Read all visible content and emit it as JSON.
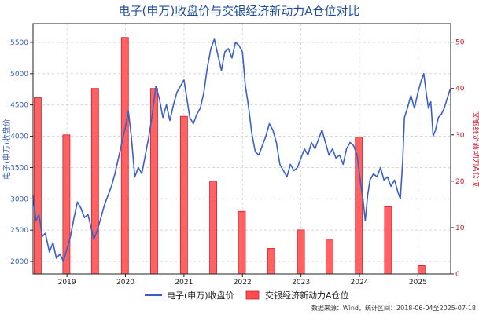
{
  "chart_data": {
    "type": "bar+line",
    "title": "电子(申万)收盘价与交银经济新动力A仓位对比",
    "ylabel_left": "电子(申万)收盘价",
    "ylabel_right": "交银经济新动力A仓位",
    "ylim_left": [
      1800,
      5800
    ],
    "ylim_right": [
      0,
      54
    ],
    "yticks_left": [
      2000,
      2500,
      3000,
      3500,
      4000,
      4500,
      5000,
      5500
    ],
    "yticks_right": [
      0,
      10,
      20,
      30,
      40,
      50
    ],
    "xlim": [
      2018.42,
      2025.56
    ],
    "xticks": [
      {
        "label": "2019",
        "value": 2019.0
      },
      {
        "label": "2020",
        "value": 2020.0
      },
      {
        "label": "2021",
        "value": 2021.0
      },
      {
        "label": "2022",
        "value": 2022.0
      },
      {
        "label": "2023",
        "value": 2023.0
      },
      {
        "label": "2024",
        "value": 2024.0
      },
      {
        "label": "2025",
        "value": 2025.0
      }
    ],
    "grid": true,
    "legend_position": "bottom-center",
    "colors": {
      "line": "#3a5fc8",
      "bar": "#ff4c4c",
      "bar_edge": "#cc1f2a",
      "title": "#1f4e9c"
    },
    "series": [
      {
        "name": "电子(申万)收盘价",
        "kind": "line",
        "axis": "left",
        "points": [
          [
            2018.42,
            3050
          ],
          [
            2018.47,
            2650
          ],
          [
            2018.52,
            2750
          ],
          [
            2018.58,
            2400
          ],
          [
            2018.63,
            2450
          ],
          [
            2018.7,
            2150
          ],
          [
            2018.76,
            2300
          ],
          [
            2018.82,
            2050
          ],
          [
            2018.88,
            2120
          ],
          [
            2018.94,
            2000
          ],
          [
            2019.0,
            2200
          ],
          [
            2019.06,
            2400
          ],
          [
            2019.12,
            2700
          ],
          [
            2019.18,
            2950
          ],
          [
            2019.24,
            2850
          ],
          [
            2019.3,
            2700
          ],
          [
            2019.36,
            2750
          ],
          [
            2019.41,
            2550
          ],
          [
            2019.46,
            2350
          ],
          [
            2019.52,
            2500
          ],
          [
            2019.58,
            2700
          ],
          [
            2019.64,
            2900
          ],
          [
            2019.7,
            3050
          ],
          [
            2019.76,
            3200
          ],
          [
            2019.82,
            3400
          ],
          [
            2019.88,
            3650
          ],
          [
            2019.94,
            3900
          ],
          [
            2020.0,
            4150
          ],
          [
            2020.05,
            4400
          ],
          [
            2020.1,
            4000
          ],
          [
            2020.16,
            3350
          ],
          [
            2020.22,
            3500
          ],
          [
            2020.28,
            3400
          ],
          [
            2020.34,
            3700
          ],
          [
            2020.4,
            4000
          ],
          [
            2020.46,
            4350
          ],
          [
            2020.52,
            4800
          ],
          [
            2020.58,
            4600
          ],
          [
            2020.64,
            4300
          ],
          [
            2020.7,
            4500
          ],
          [
            2020.76,
            4250
          ],
          [
            2020.82,
            4500
          ],
          [
            2020.88,
            4700
          ],
          [
            2020.94,
            4800
          ],
          [
            2021.0,
            4900
          ],
          [
            2021.05,
            4600
          ],
          [
            2021.1,
            4300
          ],
          [
            2021.16,
            4200
          ],
          [
            2021.22,
            4350
          ],
          [
            2021.28,
            4450
          ],
          [
            2021.34,
            4700
          ],
          [
            2021.4,
            5100
          ],
          [
            2021.46,
            5400
          ],
          [
            2021.52,
            5550
          ],
          [
            2021.58,
            5300
          ],
          [
            2021.64,
            5050
          ],
          [
            2021.7,
            5350
          ],
          [
            2021.76,
            5400
          ],
          [
            2021.82,
            5250
          ],
          [
            2021.88,
            5500
          ],
          [
            2021.94,
            5450
          ],
          [
            2022.0,
            5350
          ],
          [
            2022.05,
            4800
          ],
          [
            2022.1,
            4500
          ],
          [
            2022.16,
            4050
          ],
          [
            2022.22,
            3750
          ],
          [
            2022.28,
            3700
          ],
          [
            2022.34,
            3850
          ],
          [
            2022.4,
            4000
          ],
          [
            2022.46,
            4200
          ],
          [
            2022.52,
            4100
          ],
          [
            2022.58,
            3900
          ],
          [
            2022.64,
            3550
          ],
          [
            2022.7,
            3450
          ],
          [
            2022.76,
            3350
          ],
          [
            2022.82,
            3550
          ],
          [
            2022.88,
            3450
          ],
          [
            2022.94,
            3500
          ],
          [
            2023.0,
            3650
          ],
          [
            2023.06,
            3800
          ],
          [
            2023.12,
            3700
          ],
          [
            2023.18,
            3900
          ],
          [
            2023.24,
            3800
          ],
          [
            2023.3,
            3950
          ],
          [
            2023.36,
            4100
          ],
          [
            2023.42,
            3900
          ],
          [
            2023.48,
            3700
          ],
          [
            2023.54,
            3800
          ],
          [
            2023.6,
            3650
          ],
          [
            2023.66,
            3700
          ],
          [
            2023.72,
            3550
          ],
          [
            2023.78,
            3800
          ],
          [
            2023.84,
            3900
          ],
          [
            2023.9,
            3850
          ],
          [
            2023.96,
            3700
          ],
          [
            2024.02,
            3250
          ],
          [
            2024.06,
            3000
          ],
          [
            2024.1,
            2650
          ],
          [
            2024.14,
            3050
          ],
          [
            2024.18,
            3300
          ],
          [
            2024.24,
            3400
          ],
          [
            2024.3,
            3350
          ],
          [
            2024.36,
            3500
          ],
          [
            2024.42,
            3300
          ],
          [
            2024.48,
            3350
          ],
          [
            2024.54,
            3200
          ],
          [
            2024.6,
            3300
          ],
          [
            2024.66,
            3100
          ],
          [
            2024.7,
            3000
          ],
          [
            2024.74,
            3600
          ],
          [
            2024.77,
            4300
          ],
          [
            2024.82,
            4450
          ],
          [
            2024.88,
            4650
          ],
          [
            2024.94,
            4450
          ],
          [
            2025.0,
            4700
          ],
          [
            2025.06,
            4900
          ],
          [
            2025.1,
            5000
          ],
          [
            2025.14,
            4700
          ],
          [
            2025.18,
            4450
          ],
          [
            2025.22,
            4550
          ],
          [
            2025.26,
            4000
          ],
          [
            2025.3,
            4100
          ],
          [
            2025.35,
            4300
          ],
          [
            2025.4,
            4350
          ],
          [
            2025.45,
            4450
          ],
          [
            2025.5,
            4600
          ],
          [
            2025.55,
            4750
          ]
        ]
      },
      {
        "name": "交银经济新动力A仓位",
        "kind": "bar",
        "axis": "right",
        "points": [
          [
            2018.5,
            38.0
          ],
          [
            2018.99,
            30.0
          ],
          [
            2019.48,
            40.0
          ],
          [
            2019.99,
            51.0
          ],
          [
            2020.49,
            40.0
          ],
          [
            2021.0,
            34.0
          ],
          [
            2021.5,
            20.0
          ],
          [
            2021.99,
            13.5
          ],
          [
            2022.49,
            5.5
          ],
          [
            2023.0,
            9.5
          ],
          [
            2023.49,
            7.5
          ],
          [
            2023.99,
            29.5
          ],
          [
            2024.49,
            14.5
          ],
          [
            2025.06,
            1.8
          ]
        ]
      }
    ]
  },
  "source_note": "数据来源：Wind，统计区间：2018-06-04至2025-07-18"
}
